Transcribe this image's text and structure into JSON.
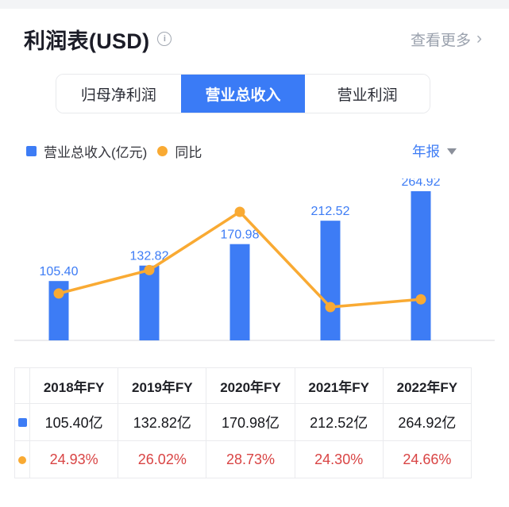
{
  "header": {
    "title": "利润表(USD)",
    "info_glyph": "i",
    "more_label": "查看更多",
    "more_chevron": "›"
  },
  "tabs": [
    {
      "label": "归母净利润",
      "active": false
    },
    {
      "label": "营业总收入",
      "active": true
    },
    {
      "label": "营业利润",
      "active": false
    }
  ],
  "legend": {
    "bar_label": "营业总收入(亿元)",
    "line_label": "同比",
    "period_label": "年报"
  },
  "colors": {
    "accent_blue": "#3d7cf5",
    "tab_active_blue": "#3a7bf6",
    "accent_orange": "#f9aa33",
    "percent_red": "#d94444",
    "axis_gray": "#ececee",
    "link_gray": "#9aa1ad"
  },
  "chart_data": {
    "type": "bar",
    "categories": [
      "2018年FY",
      "2019年FY",
      "2020年FY",
      "2021年FY",
      "2022年FY"
    ],
    "series": [
      {
        "name": "营业总收入(亿元)",
        "type": "bar",
        "values": [
          105.4,
          132.82,
          170.98,
          212.52,
          264.92
        ],
        "labels": [
          "105.40",
          "132.82",
          "170.98",
          "212.52",
          "264.92"
        ],
        "color": "#3d7cf5"
      },
      {
        "name": "同比",
        "type": "line",
        "values": [
          24.93,
          26.02,
          28.73,
          24.3,
          24.66
        ],
        "unit": "%",
        "color": "#f9aa33"
      }
    ],
    "title": "",
    "xlabel": "",
    "ylabel": "",
    "grid": false,
    "legend_position": "top-left",
    "value_labels": "above-bars"
  },
  "table": {
    "columns": [
      "",
      "2018年FY",
      "2019年FY",
      "2020年FY",
      "2021年FY",
      "2022年FY"
    ],
    "rows": [
      {
        "icon": "blue-square",
        "color": "#15161b",
        "cells": [
          "105.40亿",
          "132.82亿",
          "170.98亿",
          "212.52亿",
          "264.92亿"
        ]
      },
      {
        "icon": "orange-dot",
        "color": "#d94444",
        "cells": [
          "24.93%",
          "26.02%",
          "28.73%",
          "24.30%",
          "24.66%"
        ]
      }
    ]
  }
}
